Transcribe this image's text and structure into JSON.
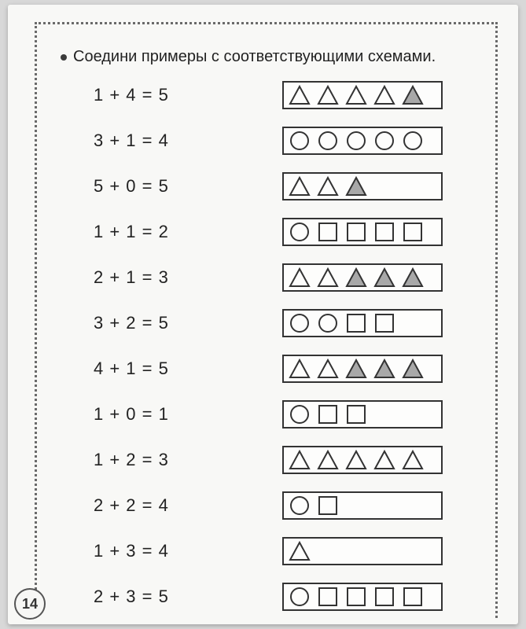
{
  "instruction": "Соедини примеры с соответствующими схемами.",
  "page_number": "14",
  "colors": {
    "shape_stroke": "#333333",
    "shape_fill_empty": "none",
    "shape_fill_shaded": "#a8a8a8",
    "box_border": "#333333",
    "dotted_border": "#6a6a6a",
    "page_bg": "#f8f8f6",
    "outer_bg": "#d8d8d8"
  },
  "shape_stroke_width": 2,
  "rows": [
    {
      "equation": "1 + 4 = 5",
      "shapes": [
        {
          "type": "triangle",
          "filled": false
        },
        {
          "type": "triangle",
          "filled": false
        },
        {
          "type": "triangle",
          "filled": false
        },
        {
          "type": "triangle",
          "filled": false
        },
        {
          "type": "triangle",
          "filled": true
        }
      ]
    },
    {
      "equation": "3 + 1 = 4",
      "shapes": [
        {
          "type": "circle",
          "filled": false
        },
        {
          "type": "circle",
          "filled": false
        },
        {
          "type": "circle",
          "filled": false
        },
        {
          "type": "circle",
          "filled": false
        },
        {
          "type": "circle",
          "filled": false
        }
      ]
    },
    {
      "equation": "5 + 0 = 5",
      "shapes": [
        {
          "type": "triangle",
          "filled": false
        },
        {
          "type": "triangle",
          "filled": false
        },
        {
          "type": "triangle",
          "filled": true
        }
      ]
    },
    {
      "equation": "1 + 1 = 2",
      "shapes": [
        {
          "type": "circle",
          "filled": false
        },
        {
          "type": "square",
          "filled": false
        },
        {
          "type": "square",
          "filled": false
        },
        {
          "type": "square",
          "filled": false
        },
        {
          "type": "square",
          "filled": false
        }
      ]
    },
    {
      "equation": "2 + 1 = 3",
      "shapes": [
        {
          "type": "triangle",
          "filled": false
        },
        {
          "type": "triangle",
          "filled": false
        },
        {
          "type": "triangle",
          "filled": true
        },
        {
          "type": "triangle",
          "filled": true
        },
        {
          "type": "triangle",
          "filled": true
        }
      ]
    },
    {
      "equation": "3 + 2 = 5",
      "shapes": [
        {
          "type": "circle",
          "filled": false
        },
        {
          "type": "circle",
          "filled": false
        },
        {
          "type": "square",
          "filled": false
        },
        {
          "type": "square",
          "filled": false
        }
      ]
    },
    {
      "equation": "4 + 1 = 5",
      "shapes": [
        {
          "type": "triangle",
          "filled": false
        },
        {
          "type": "triangle",
          "filled": false
        },
        {
          "type": "triangle",
          "filled": true
        },
        {
          "type": "triangle",
          "filled": true
        },
        {
          "type": "triangle",
          "filled": true
        }
      ]
    },
    {
      "equation": "1 + 0 = 1",
      "shapes": [
        {
          "type": "circle",
          "filled": false
        },
        {
          "type": "square",
          "filled": false
        },
        {
          "type": "square",
          "filled": false
        }
      ]
    },
    {
      "equation": "1 + 2 = 3",
      "shapes": [
        {
          "type": "triangle",
          "filled": false
        },
        {
          "type": "triangle",
          "filled": false
        },
        {
          "type": "triangle",
          "filled": false
        },
        {
          "type": "triangle",
          "filled": false
        },
        {
          "type": "triangle",
          "filled": false
        }
      ]
    },
    {
      "equation": "2 + 2 = 4",
      "shapes": [
        {
          "type": "circle",
          "filled": false
        },
        {
          "type": "square",
          "filled": false
        }
      ]
    },
    {
      "equation": "1 + 3 = 4",
      "shapes": [
        {
          "type": "triangle",
          "filled": false
        }
      ]
    },
    {
      "equation": "2 + 3 = 5",
      "shapes": [
        {
          "type": "circle",
          "filled": false
        },
        {
          "type": "square",
          "filled": false
        },
        {
          "type": "square",
          "filled": false
        },
        {
          "type": "square",
          "filled": false
        },
        {
          "type": "square",
          "filled": false
        }
      ]
    }
  ]
}
